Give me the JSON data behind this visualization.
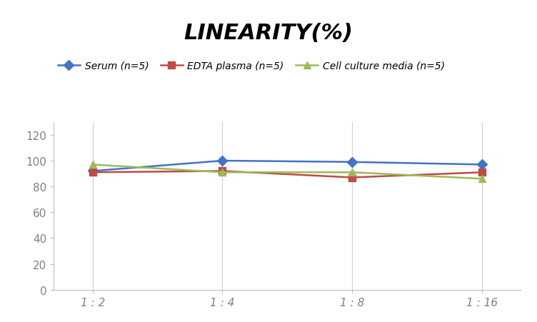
{
  "title": "LINEARITY(%)",
  "x_labels": [
    "1 : 2",
    "1 : 4",
    "1 : 8",
    "1 : 16"
  ],
  "x_positions": [
    0,
    1,
    2,
    3
  ],
  "series": [
    {
      "label": "Serum (n=5)",
      "values": [
        92,
        100,
        99,
        97
      ],
      "color": "#4472C4",
      "marker": "D",
      "markersize": 7,
      "linewidth": 1.8
    },
    {
      "label": "EDTA plasma (n=5)",
      "values": [
        91,
        92,
        87,
        91
      ],
      "color": "#BE4B48",
      "marker": "s",
      "markersize": 7,
      "linewidth": 1.8
    },
    {
      "label": "Cell culture media (n=5)",
      "values": [
        97,
        91,
        91,
        86
      ],
      "color": "#9BBB59",
      "marker": "^",
      "markersize": 7,
      "linewidth": 1.8
    }
  ],
  "ylim": [
    0,
    130
  ],
  "yticks": [
    0,
    20,
    40,
    60,
    80,
    100,
    120
  ],
  "background_color": "#ffffff",
  "title_fontsize": 22,
  "title_style": "italic",
  "title_weight": "bold",
  "legend_fontsize": 10,
  "tick_fontsize": 11,
  "tick_color": "#808080",
  "grid_color": "#d0d0d0",
  "grid_linestyle": "-",
  "grid_linewidth": 0.8
}
